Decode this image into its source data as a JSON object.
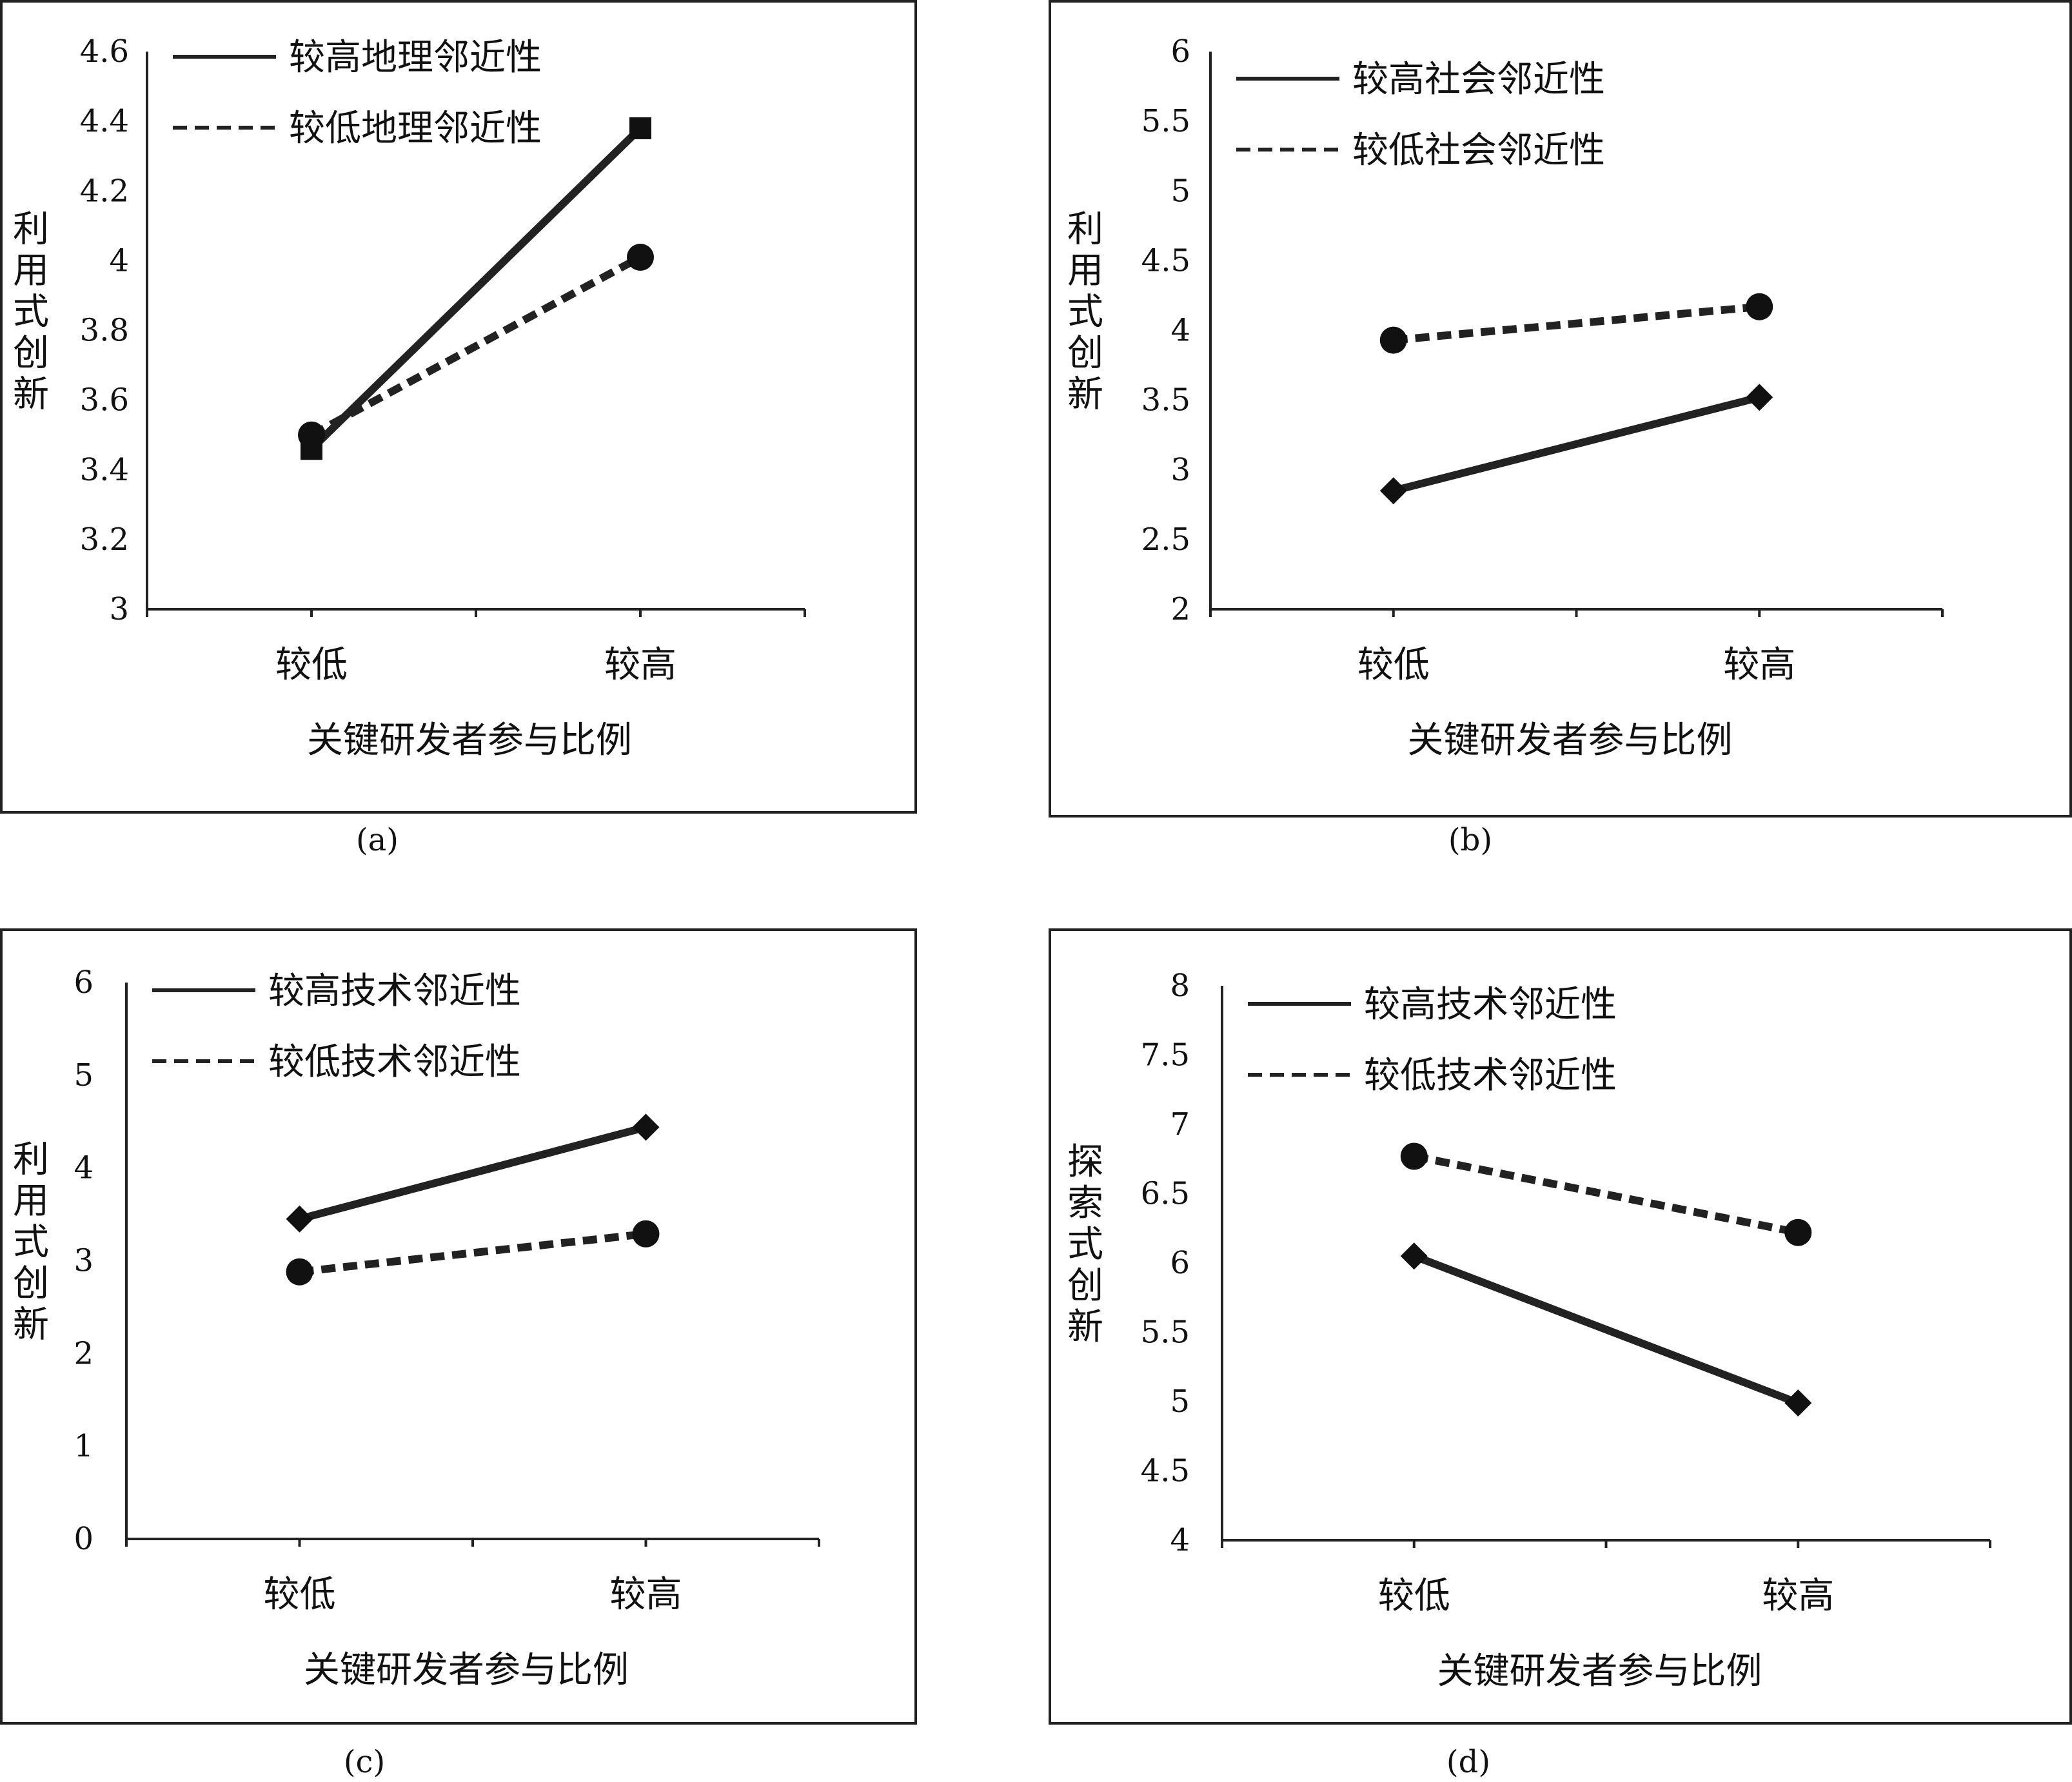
{
  "chart_data": [
    {
      "type": "line",
      "caption": "(a)",
      "xlabel": "关键研发者参与比例",
      "ylabel": "利用式创新",
      "categories": [
        "较低",
        "较高"
      ],
      "ylim": [
        3,
        4.6
      ],
      "yticks": [
        "3",
        "3.2",
        "3.4",
        "3.6",
        "3.8",
        "4",
        "4.2",
        "4.4",
        "4.6"
      ],
      "legend_position": "top-left",
      "series": [
        {
          "name": "较高地理邻近性",
          "values": [
            3.46,
            4.38
          ],
          "style": "solid",
          "marker": "square"
        },
        {
          "name": "较低地理邻近性",
          "values": [
            3.5,
            4.01
          ],
          "style": "dashed",
          "marker": "circle"
        }
      ]
    },
    {
      "type": "line",
      "caption": "(b)",
      "xlabel": "关键研发者参与比例",
      "ylabel": "利用式创新",
      "categories": [
        "较低",
        "较高"
      ],
      "ylim": [
        2,
        6
      ],
      "yticks": [
        "2",
        "2.5",
        "3",
        "3.5",
        "4",
        "4.5",
        "5",
        "5.5",
        "6"
      ],
      "legend_position": "top-left",
      "series": [
        {
          "name": "较高社会邻近性",
          "values": [
            2.85,
            3.52
          ],
          "style": "solid",
          "marker": "diamond"
        },
        {
          "name": "较低社会邻近性",
          "values": [
            3.93,
            4.17
          ],
          "style": "dashed",
          "marker": "circle"
        }
      ]
    },
    {
      "type": "line",
      "caption": "(c)",
      "xlabel": "关键研发者参与比例",
      "ylabel": "利用式创新",
      "categories": [
        "较低",
        "较高"
      ],
      "ylim": [
        0,
        6
      ],
      "yticks": [
        "0",
        "1",
        "2",
        "3",
        "4",
        "5",
        "6"
      ],
      "legend_position": "top-left",
      "series": [
        {
          "name": "较高技术邻近性",
          "values": [
            3.45,
            4.44
          ],
          "style": "solid",
          "marker": "diamond"
        },
        {
          "name": "较低技术邻近性",
          "values": [
            2.88,
            3.29
          ],
          "style": "dashed",
          "marker": "circle"
        }
      ]
    },
    {
      "type": "line",
      "caption": "(d)",
      "xlabel": "关键研发者参与比例",
      "ylabel": "探索式创新",
      "categories": [
        "较低",
        "较高"
      ],
      "ylim": [
        4,
        8
      ],
      "yticks": [
        "4",
        "4.5",
        "5",
        "5.5",
        "6",
        "6.5",
        "7",
        "7.5",
        "8"
      ],
      "legend_position": "top-left",
      "series": [
        {
          "name": "较高技术邻近性",
          "values": [
            6.05,
            4.99
          ],
          "style": "solid",
          "marker": "diamond"
        },
        {
          "name": "较低技术邻近性",
          "values": [
            6.77,
            6.22
          ],
          "style": "dashed",
          "marker": "circle"
        }
      ]
    }
  ],
  "colors": {
    "line": "#222222",
    "marker": "#111111",
    "background": "#ffffff"
  }
}
